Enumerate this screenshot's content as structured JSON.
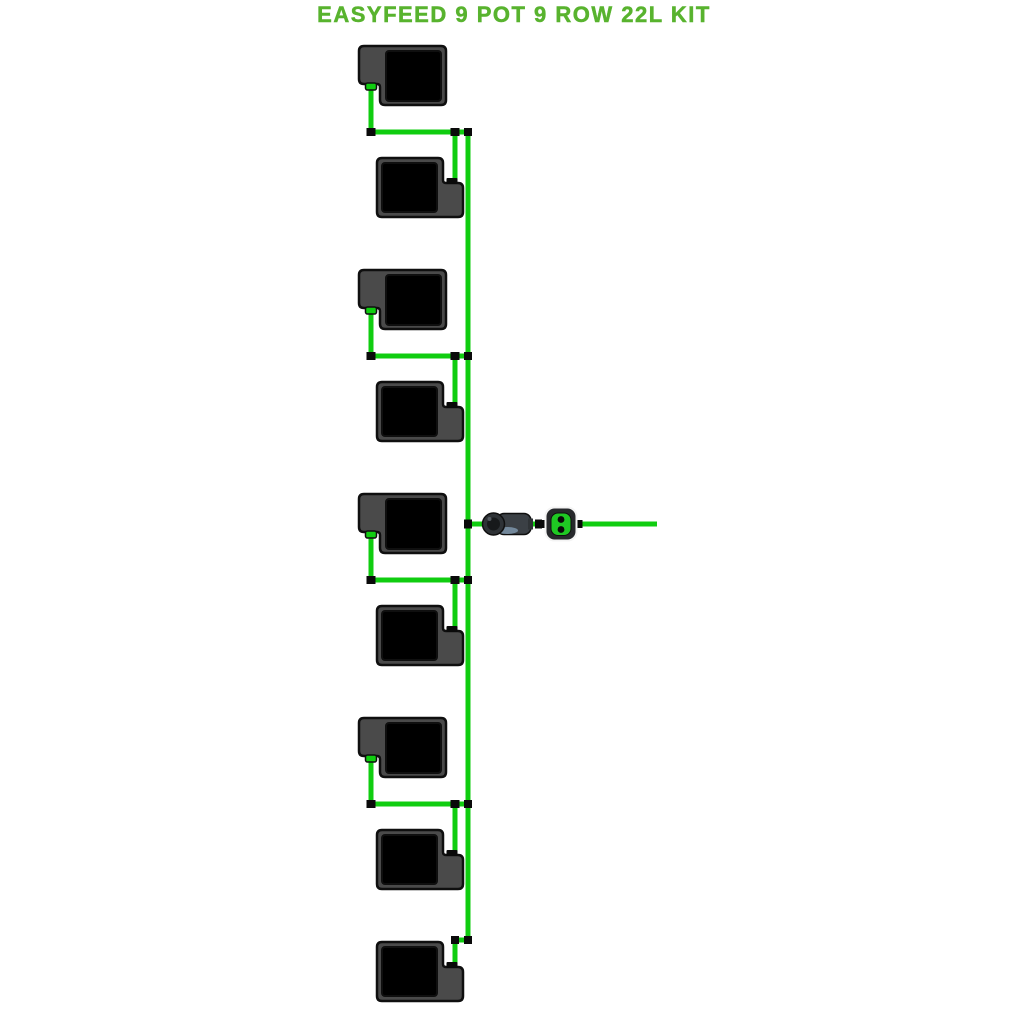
{
  "title": "EASYFEED 9 POT 9 ROW 22L KIT",
  "colors": {
    "background": "#ffffff",
    "title_green": "#58b32e",
    "tube_green": "#10cd10",
    "pot_gray": "#4a4a4a",
    "pot_cavity_black": "#000000",
    "outline_black": "#0f0f0f",
    "fitting_black": "#0a0a0a",
    "connector_gray": "#3b4045",
    "connector_cap_gray": "#2e3236",
    "connector_sheen_blue": "#7e95aa",
    "valve_body_dark": "#27292c",
    "valve_green": "#1fc823",
    "valve_outline_white": "#f4f4f4"
  },
  "diagram": {
    "pots": [
      {
        "id": "pot-1",
        "orientation": "left"
      },
      {
        "id": "pot-2",
        "orientation": "right"
      },
      {
        "id": "pot-3",
        "orientation": "left"
      },
      {
        "id": "pot-4",
        "orientation": "right"
      },
      {
        "id": "pot-5",
        "orientation": "left"
      },
      {
        "id": "pot-6",
        "orientation": "right"
      },
      {
        "id": "pot-7",
        "orientation": "left"
      },
      {
        "id": "pot-8",
        "orientation": "right"
      },
      {
        "id": "pot-9",
        "orientation": "right"
      }
    ],
    "feed_assembly": {
      "components": [
        {
          "id": "inline-connector"
        },
        {
          "id": "valve-unit"
        }
      ]
    }
  }
}
